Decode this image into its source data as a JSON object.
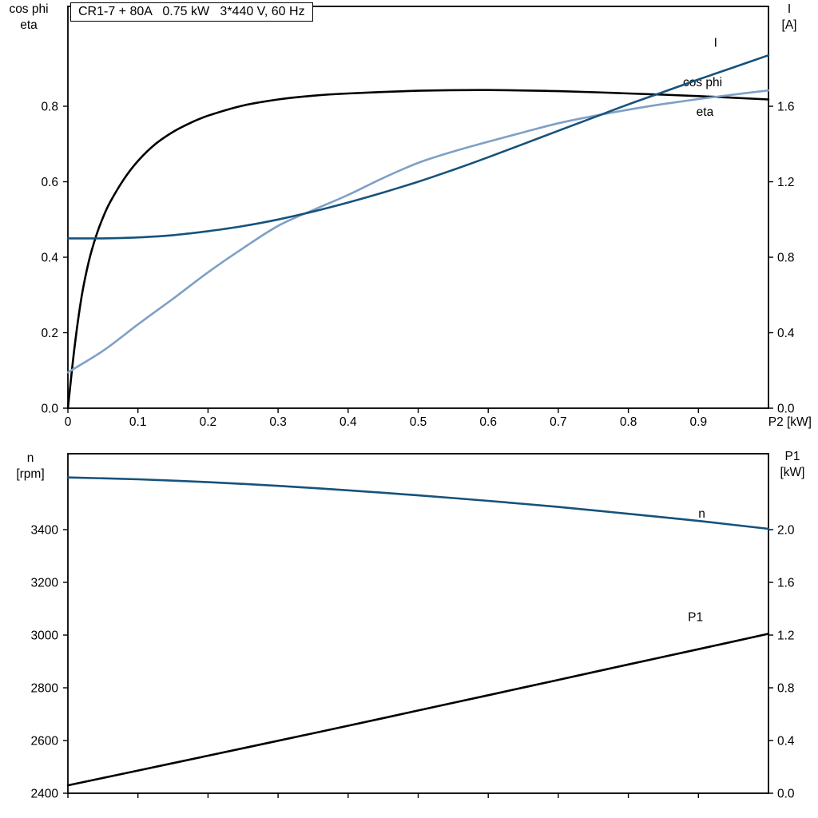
{
  "title_box": {
    "label": "CR1-7 + 80A   0.75 kW   3*440 V, 60 Hz"
  },
  "top_chart": {
    "left_axis_title_line1": "cos phi",
    "left_axis_title_line2": "eta",
    "right_axis_title_line1": "I",
    "right_axis_title_line2": "[A]"
  },
  "bottom_chart": {
    "left_axis_title_line1": "n",
    "left_axis_title_line2": "[rpm]",
    "right_axis_title_line1": "P1",
    "right_axis_title_line2": "[kW]"
  },
  "colors": {
    "eta": "#000000",
    "cos_phi": "#7EA0C6",
    "current": "#16527C",
    "speed": "#16527C",
    "p1": "#000000",
    "axis": "#000000"
  },
  "chart_data": [
    {
      "type": "line",
      "title": "CR1-7 + 80A   0.75 kW   3*440 V, 60 Hz",
      "x_axis": {
        "label": "P2 [kW]",
        "min": 0,
        "max": 1.0,
        "ticks": [
          0,
          0.1,
          0.2,
          0.3,
          0.4,
          0.5,
          0.6,
          0.7,
          0.8,
          0.9
        ],
        "tick_labels": [
          "0",
          "0.1",
          "0.2",
          "0.3",
          "0.4",
          "0.5",
          "0.6",
          "0.7",
          "0.8",
          "0.9"
        ]
      },
      "left_axis": {
        "label": "cos phi / eta",
        "min": 0,
        "max": 1.0646,
        "ticks": [
          0,
          0.2,
          0.4,
          0.6,
          0.8
        ],
        "tick_labels": [
          "0.0",
          "0.2",
          "0.4",
          "0.6",
          "0.8"
        ]
      },
      "right_axis": {
        "label": "I [A]",
        "min": 0,
        "max": 2.1292,
        "ticks": [
          0,
          0.4,
          0.8,
          1.2,
          1.6
        ],
        "tick_labels": [
          "0.0",
          "0.4",
          "0.8",
          "1.2",
          "1.6"
        ]
      },
      "series": [
        {
          "name": "eta",
          "axis": "left",
          "color_key": "eta",
          "points": [
            [
              0,
              0
            ],
            [
              0.01,
              0.17
            ],
            [
              0.02,
              0.3
            ],
            [
              0.03,
              0.39
            ],
            [
              0.04,
              0.455
            ],
            [
              0.05,
              0.505
            ],
            [
              0.06,
              0.545
            ],
            [
              0.08,
              0.607
            ],
            [
              0.1,
              0.655
            ],
            [
              0.125,
              0.7
            ],
            [
              0.15,
              0.732
            ],
            [
              0.175,
              0.756
            ],
            [
              0.2,
              0.775
            ],
            [
              0.25,
              0.802
            ],
            [
              0.3,
              0.818
            ],
            [
              0.35,
              0.828
            ],
            [
              0.4,
              0.834
            ],
            [
              0.5,
              0.841
            ],
            [
              0.6,
              0.843
            ],
            [
              0.7,
              0.84
            ],
            [
              0.8,
              0.834
            ],
            [
              0.9,
              0.827
            ],
            [
              1.0,
              0.818
            ]
          ],
          "label": {
            "text": "eta",
            "x": 0.897,
            "y": 0.775
          }
        },
        {
          "name": "cos phi",
          "axis": "left",
          "color_key": "cos_phi",
          "points": [
            [
              0,
              0.095
            ],
            [
              0.05,
              0.152
            ],
            [
              0.1,
              0.222
            ],
            [
              0.15,
              0.29
            ],
            [
              0.2,
              0.36
            ],
            [
              0.25,
              0.424
            ],
            [
              0.3,
              0.483
            ],
            [
              0.35,
              0.525
            ],
            [
              0.4,
              0.565
            ],
            [
              0.45,
              0.61
            ],
            [
              0.5,
              0.65
            ],
            [
              0.55,
              0.68
            ],
            [
              0.6,
              0.706
            ],
            [
              0.65,
              0.731
            ],
            [
              0.7,
              0.755
            ],
            [
              0.75,
              0.774
            ],
            [
              0.8,
              0.791
            ],
            [
              0.85,
              0.806
            ],
            [
              0.9,
              0.819
            ],
            [
              0.95,
              0.831
            ],
            [
              1.0,
              0.842
            ]
          ],
          "label": {
            "text": "cos phi",
            "x": 0.878,
            "y": 0.853
          }
        },
        {
          "name": "I",
          "axis": "right",
          "color_key": "current",
          "points": [
            [
              0,
              0.9
            ],
            [
              0.05,
              0.9
            ],
            [
              0.1,
              0.905
            ],
            [
              0.15,
              0.917
            ],
            [
              0.2,
              0.938
            ],
            [
              0.25,
              0.965
            ],
            [
              0.3,
              1.0
            ],
            [
              0.35,
              1.042
            ],
            [
              0.4,
              1.09
            ],
            [
              0.45,
              1.143
            ],
            [
              0.5,
              1.2
            ],
            [
              0.55,
              1.263
            ],
            [
              0.6,
              1.33
            ],
            [
              0.65,
              1.4
            ],
            [
              0.7,
              1.47
            ],
            [
              0.75,
              1.54
            ],
            [
              0.8,
              1.61
            ],
            [
              0.85,
              1.676
            ],
            [
              0.9,
              1.742
            ],
            [
              0.95,
              1.806
            ],
            [
              1.0,
              1.87
            ]
          ],
          "label": {
            "text": "I",
            "x": 0.922,
            "y": 1.915
          }
        }
      ]
    },
    {
      "type": "line",
      "title": "",
      "x_axis": {
        "label": "",
        "min": 0,
        "max": 1.0,
        "ticks": [
          0,
          0.1,
          0.2,
          0.3,
          0.4,
          0.5,
          0.6,
          0.7,
          0.8,
          0.9
        ],
        "tick_labels": []
      },
      "left_axis": {
        "label": "n [rpm]",
        "min": 2400,
        "max": 3687.9,
        "ticks": [
          2400,
          2600,
          2800,
          3000,
          3200,
          3400
        ],
        "tick_labels": [
          "2400",
          "2600",
          "2800",
          "3000",
          "3200",
          "3400"
        ]
      },
      "right_axis": {
        "label": "P1 [kW]",
        "min": 0,
        "max": 2.576,
        "ticks": [
          0,
          0.4,
          0.8,
          1.2,
          1.6,
          2.0
        ],
        "tick_labels": [
          "0.0",
          "0.4",
          "0.8",
          "1.2",
          "1.6",
          "2.0"
        ]
      },
      "series": [
        {
          "name": "n",
          "axis": "left",
          "color_key": "speed",
          "points": [
            [
              0,
              3598
            ],
            [
              0.1,
              3591
            ],
            [
              0.2,
              3580
            ],
            [
              0.3,
              3566
            ],
            [
              0.4,
              3549
            ],
            [
              0.5,
              3530
            ],
            [
              0.6,
              3509
            ],
            [
              0.7,
              3486
            ],
            [
              0.8,
              3460
            ],
            [
              0.9,
              3433
            ],
            [
              1.0,
              3403
            ]
          ],
          "label": {
            "text": "n",
            "x": 0.9,
            "y": 3445
          }
        },
        {
          "name": "P1",
          "axis": "right",
          "color_key": "p1",
          "points": [
            [
              0,
              0.06
            ],
            [
              0.1,
              0.172
            ],
            [
              0.2,
              0.285
            ],
            [
              0.3,
              0.398
            ],
            [
              0.4,
              0.512
            ],
            [
              0.5,
              0.628
            ],
            [
              0.6,
              0.744
            ],
            [
              0.7,
              0.86
            ],
            [
              0.8,
              0.977
            ],
            [
              0.9,
              1.093
            ],
            [
              1.0,
              1.21
            ]
          ],
          "label": {
            "text": "P1",
            "x": 0.885,
            "y": 1.305
          }
        }
      ]
    }
  ]
}
